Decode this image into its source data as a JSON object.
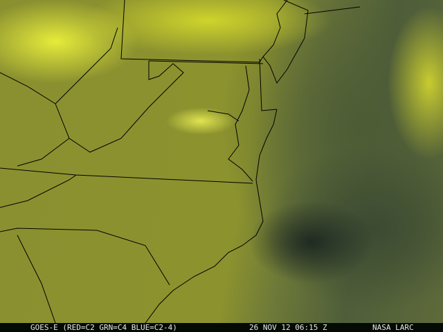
{
  "image": {
    "type": "satellite-composite",
    "region": "Mid-Atlantic US coast",
    "colors": {
      "land": "#8a9030",
      "clouds": "#e6ec3a",
      "ocean": "#4f5e3a",
      "borders": "#000000",
      "caption_bg": "#040a04",
      "caption_text": "#e8e8e8"
    }
  },
  "caption": {
    "satellite": "GOES-E (RED=C2 GRN=C4 BLUE=C2-4)",
    "datetime": "26 NOV 12 06:15 Z",
    "credit": "NASA LARC"
  }
}
